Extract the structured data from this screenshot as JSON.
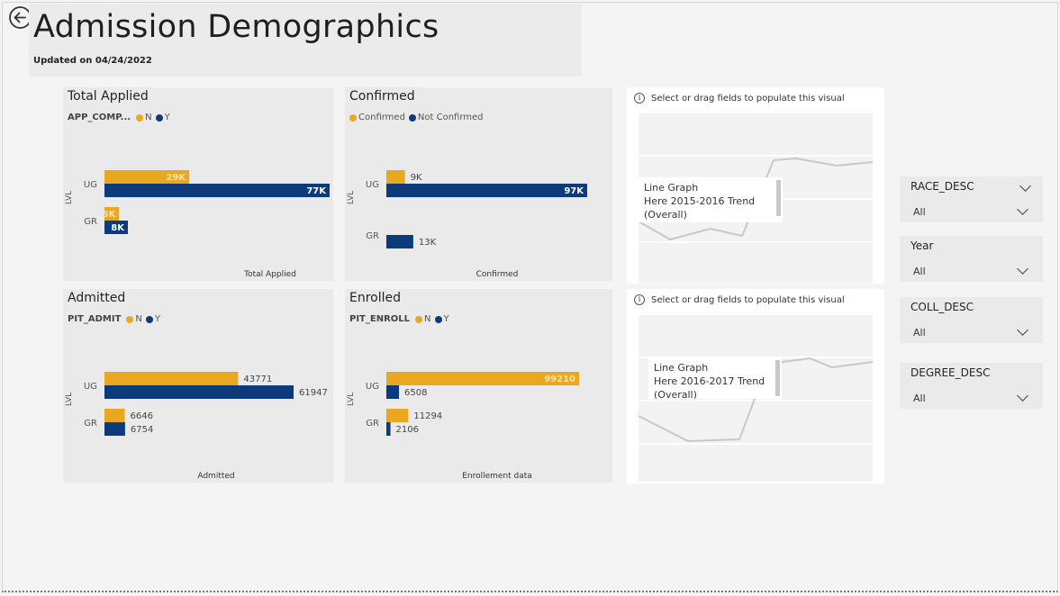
{
  "header": {
    "title": "Admission Demographics",
    "updated": "Updated on 04/24/2022"
  },
  "colors": {
    "n": "#e9a820",
    "y": "#0b3b7a"
  },
  "cards": {
    "total_applied": {
      "title": "Total Applied",
      "legend_title": "APP_COMP...",
      "legend": [
        "N",
        "Y"
      ],
      "axis_title": "LVL",
      "footer": "Total Applied"
    },
    "confirmed": {
      "title": "Confirmed",
      "legend_title": "",
      "legend": [
        "Confirmed",
        "Not Confirmed"
      ],
      "axis_title": "LVL",
      "footer": "Confirmed"
    },
    "admitted": {
      "title": "Admitted",
      "legend_title": "PIT_ADMIT",
      "legend": [
        "N",
        "Y"
      ],
      "axis_title": "LVL",
      "footer": "Admitted"
    },
    "enrolled": {
      "title": "Enrolled",
      "legend_title": "PIT_ENROLL",
      "legend": [
        "N",
        "Y"
      ],
      "axis_title": "LVL",
      "footer": "Enrollement data"
    }
  },
  "chart_data": [
    {
      "type": "bar",
      "orientation": "horizontal",
      "title": "Total Applied",
      "categories": [
        "UG",
        "GR"
      ],
      "series": [
        {
          "name": "N",
          "values": [
            29000,
            5000
          ],
          "labels": [
            "29K",
            "5K"
          ]
        },
        {
          "name": "Y",
          "values": [
            77000,
            8000
          ],
          "labels": [
            "77K",
            "8K"
          ]
        }
      ],
      "xlabel": "Total Applied",
      "ylabel": "LVL"
    },
    {
      "type": "bar",
      "orientation": "horizontal",
      "title": "Confirmed",
      "categories": [
        "UG",
        "GR"
      ],
      "series": [
        {
          "name": "Confirmed",
          "values": [
            9000,
            0
          ],
          "labels": [
            "9K",
            ""
          ]
        },
        {
          "name": "Not Confirmed",
          "values": [
            97000,
            13000
          ],
          "labels": [
            "97K",
            "13K"
          ]
        }
      ],
      "xlabel": "Confirmed",
      "ylabel": "LVL"
    },
    {
      "type": "bar",
      "orientation": "horizontal",
      "title": "Admitted",
      "categories": [
        "UG",
        "GR"
      ],
      "series": [
        {
          "name": "N",
          "values": [
            43771,
            6646
          ],
          "labels": [
            "43771",
            "6646"
          ]
        },
        {
          "name": "Y",
          "values": [
            61947,
            6754
          ],
          "labels": [
            "61947",
            "6754"
          ]
        }
      ],
      "xlabel": "Admitted",
      "ylabel": "LVL"
    },
    {
      "type": "bar",
      "orientation": "horizontal",
      "title": "Enrolled",
      "categories": [
        "UG",
        "GR"
      ],
      "series": [
        {
          "name": "N",
          "values": [
            99210,
            11294
          ],
          "labels": [
            "99210",
            "11294"
          ]
        },
        {
          "name": "Y",
          "values": [
            6508,
            2106
          ],
          "labels": [
            "6508",
            "2106"
          ]
        }
      ],
      "xlabel": "Enrollement data",
      "ylabel": "LVL"
    }
  ],
  "placeholders": [
    {
      "message": "Select or drag fields to populate this visual",
      "tooltip": [
        "Line Graph",
        "Here 2015-2016 Trend",
        "(Overall)"
      ]
    },
    {
      "message": "Select or drag fields to populate this visual",
      "tooltip": [
        "Line Graph",
        "Here 2016-2017 Trend",
        "(Overall)"
      ]
    }
  ],
  "slicers": [
    {
      "title": "RACE_DESC",
      "value": "All"
    },
    {
      "title": "Year",
      "value": "All"
    },
    {
      "title": "COLL_DESC",
      "value": "All"
    },
    {
      "title": "DEGREE_DESC",
      "value": "All"
    }
  ],
  "icons": {
    "back": "back-arrow-icon",
    "info": "info-icon",
    "dropdown": "chevron-down-icon"
  }
}
